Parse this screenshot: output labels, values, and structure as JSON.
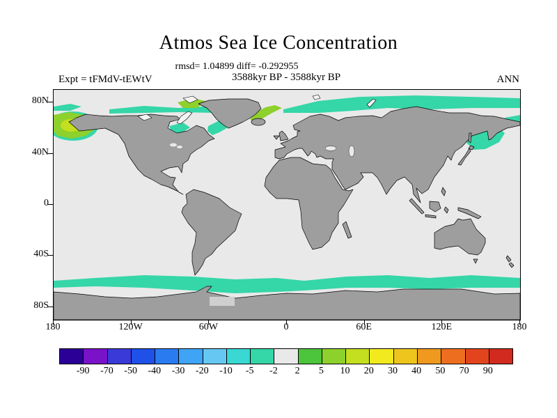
{
  "title": "Atmos Sea Ice Concentration",
  "stats": "rmsd= 1.04899 diff= -0.292955",
  "header": {
    "left": "Expt = tFMdV-tEWtV",
    "center": "3588kyr BP - 3588kyr BP",
    "right": "ANN"
  },
  "axes": {
    "lat_labels": [
      "80N",
      "40N",
      "0",
      "40S",
      "80S"
    ],
    "lon_labels": [
      "180",
      "120W",
      "60W",
      "0",
      "60E",
      "120E",
      "180"
    ]
  },
  "colorbar": {
    "tick_labels": [
      "-90",
      "-70",
      "-50",
      "-40",
      "-30",
      "-20",
      "-10",
      "-5",
      "-2",
      "2",
      "5",
      "10",
      "20",
      "30",
      "40",
      "50",
      "70",
      "90"
    ],
    "colors": [
      "#2b0096",
      "#7a12c9",
      "#3a3ad9",
      "#1f51e8",
      "#2a7bf0",
      "#3fa4f5",
      "#66c8f2",
      "#39d8d2",
      "#35d6a8",
      "#e9e9e9",
      "#4cc43b",
      "#8ed02c",
      "#c3df1f",
      "#f2ea1f",
      "#eec51c",
      "#f0991f",
      "#ec6e1e",
      "#e2451d",
      "#d22a1e"
    ]
  },
  "map_colors": {
    "ocean": "#e9e9e9",
    "land": "#9e9e9e",
    "arctic_island": "#f4f4f4",
    "ice_shelf": "#cfcfcf",
    "ice_negative_teal": "#35d6a8",
    "ice_positive_green": "#8ed02c",
    "ice_positive_bright": "#c3df1f"
  },
  "chart_data": {
    "type": "heatmap",
    "title": "Atmos Sea Ice Concentration",
    "stats": {
      "rmsd": 1.04899,
      "diff": -0.292955
    },
    "experiment": "tFMdV-tEWtV",
    "period": "3588kyr BP - 3588kyr BP",
    "season": "ANN",
    "projection": "global equirectangular (cylindrical) map",
    "x_axis": {
      "tick_labels": [
        "180",
        "120W",
        "60W",
        "0",
        "60E",
        "120E",
        "180"
      ],
      "range_deg_lon": [
        -180,
        180
      ]
    },
    "y_axis": {
      "tick_labels": [
        "80N",
        "40N",
        "0",
        "40S",
        "80S"
      ],
      "range_deg_lat": [
        -90,
        90
      ]
    },
    "contour_levels": [
      -90,
      -70,
      -50,
      -40,
      -30,
      -20,
      -10,
      -5,
      -2,
      2,
      5,
      10,
      20,
      30,
      40,
      50,
      70,
      90
    ],
    "palette": [
      "#2b0096",
      "#7a12c9",
      "#3a3ad9",
      "#1f51e8",
      "#2a7bf0",
      "#3fa4f5",
      "#66c8f2",
      "#39d8d2",
      "#35d6a8",
      "#e9e9e9",
      "#4cc43b",
      "#8ed02c",
      "#c3df1f",
      "#f2ea1f",
      "#eec51c",
      "#f0991f",
      "#ec6e1e",
      "#e2451d",
      "#d22a1e"
    ],
    "legend_position": "bottom horizontal colorbar",
    "features": [
      {
        "region": "Southern Ocean circumpolar band (~55S-65S)",
        "value_range": "-5 to -2"
      },
      {
        "region": "Gulf of Alaska / NE Pacific at left map edge (~55N-70N)",
        "value_range": "5 to 20"
      },
      {
        "region": "Arctic band along Barents-Kara-Siberian coast (~72N-80N)",
        "value_range": "-5 to -2"
      },
      {
        "region": "East Greenland / Iceland sector",
        "value_range": "5 to 10"
      },
      {
        "region": "Northern Baffin Bay arc",
        "value_range": "5 to 10"
      },
      {
        "region": "Labrador Sea",
        "value_range": "-5 to -2"
      },
      {
        "region": "Hudson Bay",
        "value_range": "-5 to -2"
      },
      {
        "region": "Canadian Arctic coastal streaks",
        "value_range": "-5 to -2"
      },
      {
        "region": "Sea of Okhotsk / NW Pacific at right map edge",
        "value_range": "-5 to -2"
      },
      {
        "region": "Elsewhere (most of globe)",
        "value_range": "-2 to 2"
      }
    ]
  }
}
